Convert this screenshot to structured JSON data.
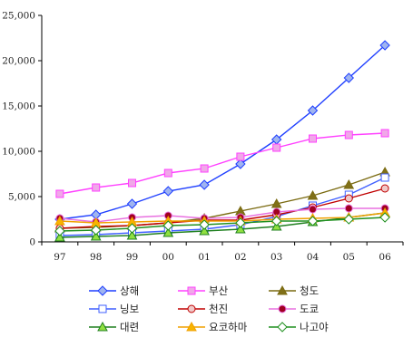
{
  "chart_data": {
    "type": "line",
    "title": "",
    "xlabel": "",
    "ylabel": "",
    "x": [
      "97",
      "98",
      "99",
      "00",
      "01",
      "02",
      "03",
      "04",
      "05",
      "06"
    ],
    "ylim": [
      0,
      25000
    ],
    "yticks": [
      0,
      5000,
      10000,
      15000,
      20000,
      25000
    ],
    "ytick_labels": [
      "0",
      "5,000",
      "10,000",
      "15,000",
      "20,000",
      "25,000"
    ],
    "grid": false,
    "legend_position": "bottom",
    "legend_columns": 3,
    "series": [
      {
        "name": "상해",
        "color": "#1f3fff",
        "marker": "diamond",
        "marker_fill": "#9fb4f0",
        "values": [
          2500,
          3000,
          4200,
          5600,
          6300,
          8600,
          11300,
          14500,
          18100,
          21700
        ]
      },
      {
        "name": "부산",
        "color": "#ff40ff",
        "marker": "square",
        "marker_fill": "#f0a8e8",
        "values": [
          5300,
          6000,
          6500,
          7600,
          8100,
          9400,
          10400,
          11400,
          11800,
          12000
        ]
      },
      {
        "name": "청도",
        "color": "#7a6a10",
        "marker": "triangle",
        "marker_fill": "#807018",
        "values": [
          1500,
          1600,
          1800,
          2100,
          2600,
          3400,
          4200,
          5100,
          6300,
          7700
        ]
      },
      {
        "name": "닝보",
        "color": "#3f5fff",
        "marker": "square-open",
        "marker_fill": "#ffffff",
        "values": [
          700,
          800,
          1000,
          1200,
          1400,
          1900,
          2800,
          4000,
          5200,
          7100
        ]
      },
      {
        "name": "천진",
        "color": "#c00000",
        "marker": "circle",
        "marker_fill": "#f0c8c8",
        "values": [
          1500,
          1700,
          1800,
          2100,
          2400,
          2400,
          3000,
          3800,
          4800,
          5900
        ]
      },
      {
        "name": "도쿄",
        "color": "#e870e0",
        "marker": "circle",
        "marker_fill": "#a00020",
        "values": [
          2600,
          2200,
          2700,
          2900,
          2600,
          2700,
          3300,
          3600,
          3700,
          3700
        ]
      },
      {
        "name": "대련",
        "color": "#208020",
        "marker": "triangle",
        "marker_fill": "#90e040",
        "values": [
          500,
          600,
          700,
          1000,
          1200,
          1400,
          1700,
          2200,
          2700,
          3200
        ]
      },
      {
        "name": "요코하마",
        "color": "#f0a000",
        "marker": "triangle",
        "marker_fill": "#f8b400",
        "values": [
          2300,
          2100,
          2200,
          2300,
          2300,
          2300,
          2500,
          2600,
          2700,
          3200
        ]
      },
      {
        "name": "나고야",
        "color": "#209020",
        "marker": "diamond",
        "marker_fill": "#ffffff",
        "values": [
          1200,
          1300,
          1500,
          1800,
          1900,
          2100,
          2300,
          2300,
          2500,
          2700
        ]
      }
    ]
  }
}
